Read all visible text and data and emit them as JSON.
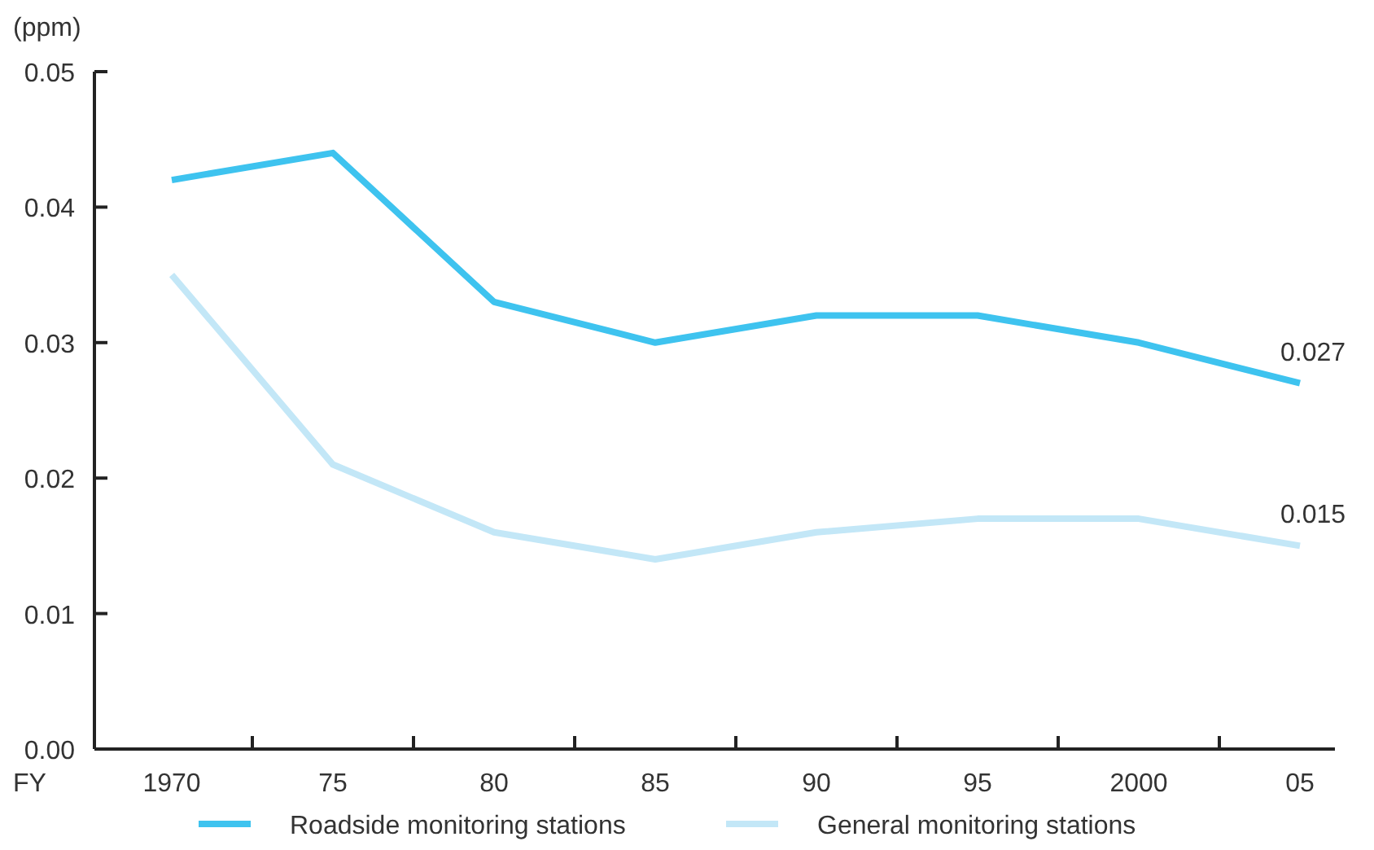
{
  "chart_data": {
    "type": "line",
    "ylabel": "(ppm)",
    "xlabel": "FY",
    "categories": [
      "1970",
      "75",
      "80",
      "85",
      "90",
      "95",
      "2000",
      "05"
    ],
    "ylim": [
      0,
      0.05
    ],
    "yticks": [
      {
        "value": 0,
        "label": "0.00"
      },
      0.01,
      0.02,
      0.03,
      0.04,
      0.05
    ],
    "grid": false,
    "legend": "bottom",
    "marker": "none",
    "line_style": "solid",
    "series": [
      {
        "name": "Roadside monitoring stations",
        "color": "#3ec3ef",
        "values": [
          0.042,
          0.044,
          0.033,
          0.03,
          0.032,
          0.032,
          0.03,
          0.027
        ],
        "value_labels": [
          null,
          null,
          null,
          null,
          null,
          null,
          null,
          "0.027"
        ]
      },
      {
        "name": "General monitoring stations",
        "color": "#c3e7f7",
        "values": [
          0.035,
          0.021,
          0.016,
          0.014,
          0.016,
          0.017,
          0.017,
          0.015
        ],
        "value_labels": [
          null,
          null,
          null,
          null,
          null,
          null,
          null,
          "0.015"
        ]
      }
    ]
  }
}
